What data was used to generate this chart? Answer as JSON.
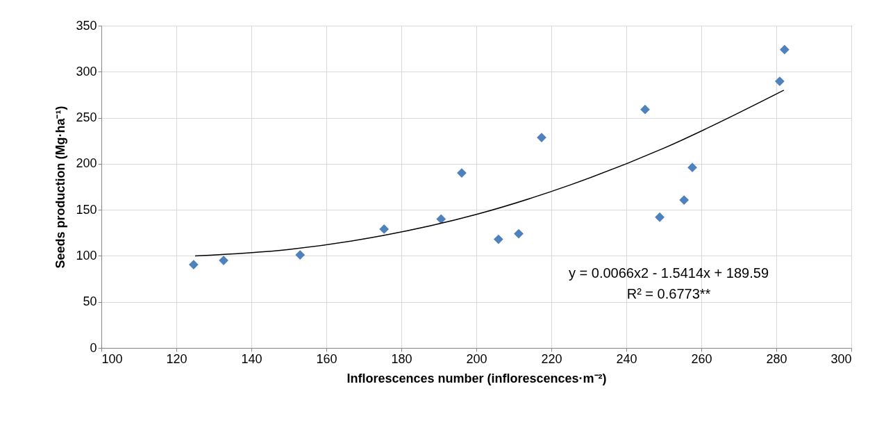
{
  "chart_data": {
    "type": "scatter",
    "xlabel": "Inflorescences number (inflorescences·m⁻²)",
    "ylabel": "Seeds production (Mg·ha⁻¹)",
    "xlim": [
      100,
      300
    ],
    "xticks": [
      100,
      120,
      140,
      160,
      180,
      200,
      220,
      240,
      260,
      280,
      300
    ],
    "ylim": [
      0,
      350
    ],
    "yticks": [
      0,
      50,
      100,
      150,
      200,
      250,
      300,
      350
    ],
    "grid": true,
    "marker": "diamond",
    "series": [
      {
        "color": "#4f81bd",
        "x": [
          124.6,
          132.6,
          153,
          175.4,
          190.6,
          196.1,
          205.9,
          211.3,
          217.4,
          245,
          248.9,
          255.4,
          257.6,
          280.9,
          282.2
        ],
        "values": [
          90.5,
          95,
          101,
          129,
          140,
          190,
          118,
          124,
          228.5,
          259,
          142,
          160.6,
          196,
          289.6,
          324
        ]
      },
      {
        "type": "line",
        "color": "#000000",
        "marker": "none",
        "line_style": "solid",
        "x": [
          125,
          150,
          175,
          200,
          225,
          250,
          282
        ],
        "values": [
          100,
          107,
          122,
          145,
          177,
          217,
          280
        ]
      }
    ],
    "annotations": [
      "y = 0.0066x2 - 1.5414x + 189.59",
      "R² = 0.6773**"
    ]
  }
}
